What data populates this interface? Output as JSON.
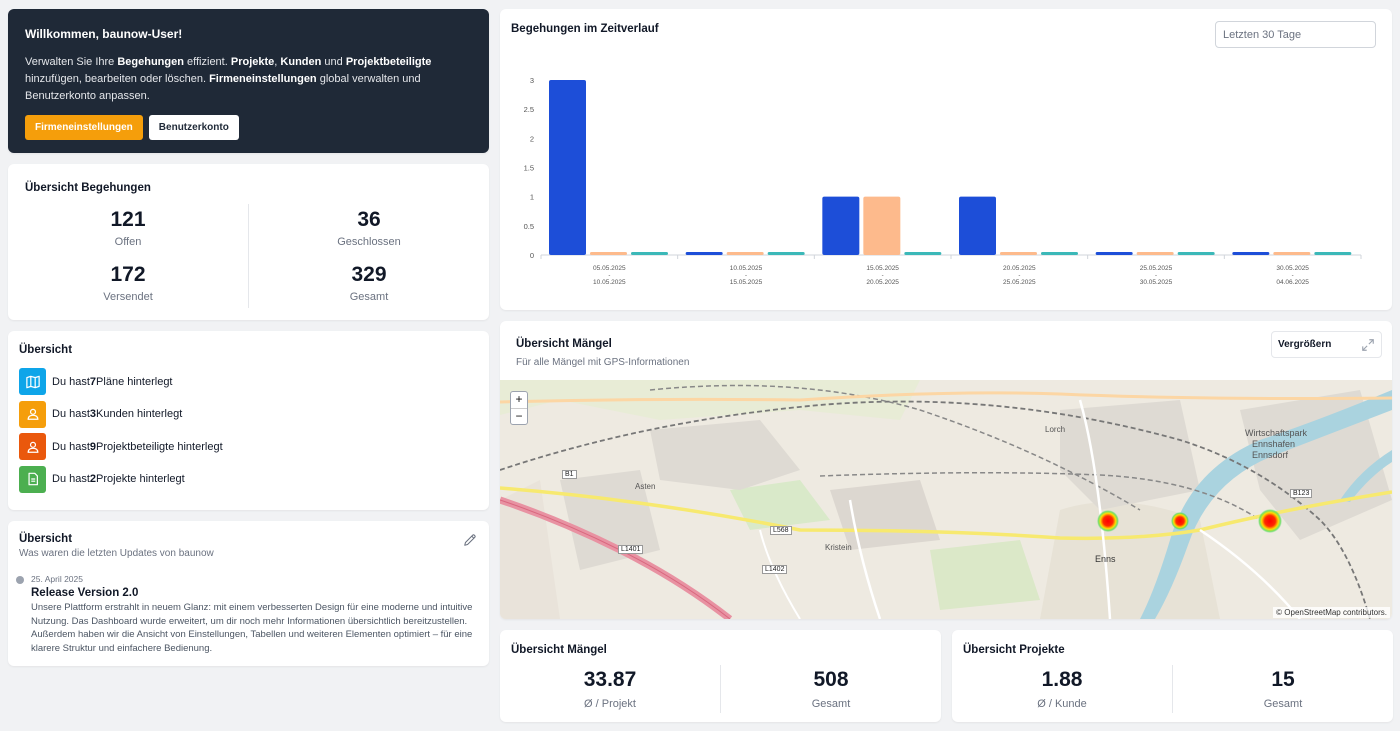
{
  "welcome": {
    "title": "Willkommen, baunow-User!",
    "t1": "Verwalten Sie Ihre ",
    "b1": "Begehungen",
    "t2": " effizient. ",
    "b2": "Projekte",
    "t3": ", ",
    "b3": "Kunden",
    "t4": " und ",
    "b4": "Projektbeteiligte",
    "t5": " hinzufügen, bearbeiten oder löschen. ",
    "b5": "Firmeneinstellungen",
    "t6": " global verwalten und Benutzerkonto anpassen.",
    "btn_company": "Firmeneinstellungen",
    "btn_account": "Benutzerkonto"
  },
  "inspections": {
    "title": "Übersicht Begehungen",
    "open": {
      "value": "121",
      "label": "Offen"
    },
    "closed": {
      "value": "36",
      "label": "Geschlossen"
    },
    "sent": {
      "value": "172",
      "label": "Versendet"
    },
    "total": {
      "value": "329",
      "label": "Gesamt"
    }
  },
  "overview": {
    "title": "Übersicht",
    "items": [
      {
        "pre": "Du hast ",
        "count": "7",
        "post": " Pläne hinterlegt",
        "icon": "map-icon",
        "color": "#0ea5e9"
      },
      {
        "pre": "Du hast ",
        "count": "3",
        "post": " Kunden hinterlegt",
        "icon": "user-icon",
        "color": "#f59e0b"
      },
      {
        "pre": "Du hast ",
        "count": "9",
        "post": " Projektbeteiligte hinterlegt",
        "icon": "user-icon",
        "color": "#ea580c"
      },
      {
        "pre": "Du hast ",
        "count": "2",
        "post": " Projekte hinterlegt",
        "icon": "document-icon",
        "color": "#4caf50"
      }
    ]
  },
  "updates": {
    "title": "Übersicht",
    "subtitle": "Was waren die letzten Updates von baunow",
    "entry": {
      "date": "25. April 2025",
      "title": "Release Version 2.0",
      "text": "Unsere Plattform erstrahlt in neuem Glanz: mit einem verbesserten Design für eine moderne und intuitive Nutzung. Das Dashboard wurde erweitert, um dir noch mehr Informationen übersichtlich bereitzustellen. Außerdem haben wir die Ansicht von Einstellungen, Tabellen und weiteren Elementen optimiert – für eine klarere Struktur und einfachere Bedienung."
    }
  },
  "chart": {
    "title": "Begehungen im Zeitverlauf",
    "range_value": "Letzten 30 Tage"
  },
  "chart_data": {
    "type": "bar",
    "categories": [
      [
        "05.05.2025",
        "-",
        "10.05.2025"
      ],
      [
        "10.05.2025",
        "-",
        "15.05.2025"
      ],
      [
        "15.05.2025",
        "-",
        "20.05.2025"
      ],
      [
        "20.05.2025",
        "-",
        "25.05.2025"
      ],
      [
        "25.05.2025",
        "-",
        "30.05.2025"
      ],
      [
        "30.05.2025",
        "-",
        "04.06.2025"
      ]
    ],
    "series": [
      {
        "values": [
          3,
          0,
          1,
          1,
          0,
          0
        ],
        "color": "#1d4ed8"
      },
      {
        "values": [
          0,
          0,
          1,
          0,
          0,
          0
        ],
        "color": "#fdba8c"
      },
      {
        "values": [
          0,
          0,
          0,
          0,
          0,
          0
        ],
        "color": "#3bb8b8"
      }
    ],
    "ylim": [
      0,
      3
    ],
    "yticks": [
      "0",
      "0.5",
      "1",
      "1.5",
      "2",
      "2.5",
      "3"
    ],
    "grid": false,
    "legend": "none"
  },
  "defects_map": {
    "title": "Übersicht Mängel",
    "subtitle": "Für alle Mängel mit GPS-Informationen",
    "enlarge": "Vergrößern",
    "zoom_in": "+",
    "zoom_out": "−",
    "attribution": "© OpenStreetMap contributors.",
    "labels": {
      "wirtschaftspark": "Wirtschaftspark",
      "ennshafen": "Ennshafen",
      "ennsdorf": "Ennsdorf",
      "enns": "Enns",
      "kristein": "Kristein",
      "asten": "Asten",
      "lorch": "Lorch",
      "b1": "B1",
      "b123": "B123",
      "l568": "L568",
      "l1401": "L1401",
      "l1402": "L1402"
    }
  },
  "defects_stats": {
    "title": "Übersicht Mängel",
    "avg": {
      "value": "33.87",
      "label": "Ø / Projekt"
    },
    "total": {
      "value": "508",
      "label": "Gesamt"
    }
  },
  "projects_stats": {
    "title": "Übersicht Projekte",
    "avg": {
      "value": "1.88",
      "label": "Ø / Kunde"
    },
    "total": {
      "value": "15",
      "label": "Gesamt"
    }
  }
}
